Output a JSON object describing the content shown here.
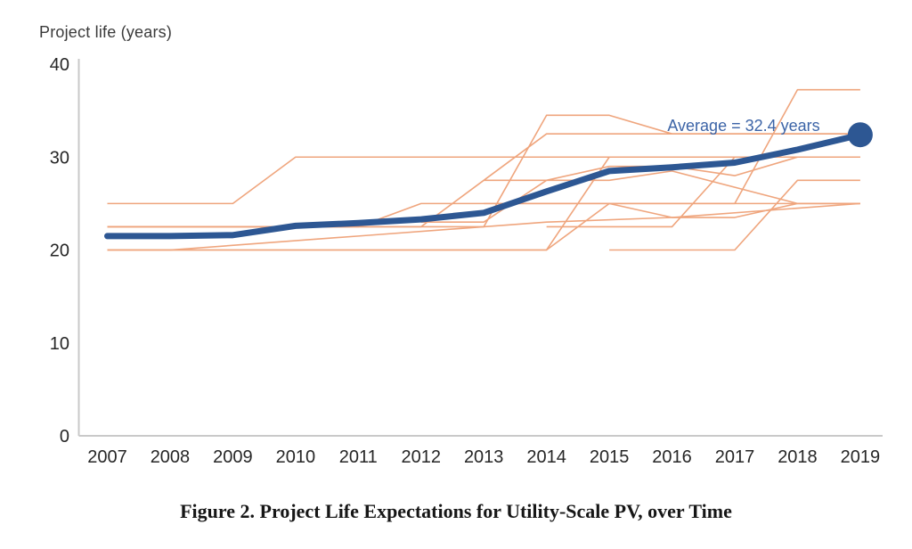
{
  "header": {
    "title": "Project life (years)"
  },
  "caption": "Figure 2. Project Life Expectations for Utility-Scale PV, over Time",
  "colors": {
    "average_line": "#2d5793",
    "respondent_line": "#efa57d",
    "axis": "#c9c9c9",
    "annotation_text": "#3c64a7",
    "tick_text": "#262626"
  },
  "chart_data": {
    "type": "line",
    "title": "Project life (years)",
    "xlabel": "",
    "ylabel": "Project life (years)",
    "x_tick_labels": [
      "2007",
      "2008",
      "2009",
      "2010",
      "2011",
      "2012",
      "2013",
      "2014",
      "2015",
      "2016",
      "2017",
      "2018",
      "2019"
    ],
    "y_ticks": [
      0,
      10,
      20,
      30,
      40
    ],
    "ylim": [
      0,
      40
    ],
    "xlim": [
      2007,
      2019
    ],
    "grid": false,
    "legend": "none",
    "annotation": {
      "text": "Average = 32.4 years",
      "x": 2019,
      "y": 32.4
    },
    "average_series": {
      "name": "Average",
      "x": [
        2007,
        2008,
        2009,
        2010,
        2011,
        2012,
        2013,
        2014,
        2015,
        2016,
        2017,
        2018,
        2019
      ],
      "values": [
        21.5,
        21.5,
        21.6,
        22.6,
        22.9,
        23.3,
        24.0,
        26.3,
        28.5,
        28.9,
        29.4,
        30.8,
        32.4
      ],
      "end_marker": {
        "x": 2019,
        "y": 32.4
      }
    },
    "respondent_series": [
      {
        "name": "respondent-1",
        "points": [
          [
            2007,
            25
          ],
          [
            2009,
            25
          ],
          [
            2010,
            30
          ],
          [
            2019,
            30
          ]
        ]
      },
      {
        "name": "respondent-2",
        "points": [
          [
            2007,
            22.5
          ],
          [
            2013,
            22.5
          ],
          [
            2014,
            34.5
          ],
          [
            2015,
            34.5
          ],
          [
            2016,
            32.5
          ],
          [
            2019,
            32.5
          ]
        ]
      },
      {
        "name": "respondent-3",
        "points": [
          [
            2007,
            20
          ],
          [
            2014,
            20
          ],
          [
            2015,
            30
          ],
          [
            2019,
            30
          ]
        ]
      },
      {
        "name": "respondent-4",
        "points": [
          [
            2007,
            20
          ],
          [
            2008,
            20
          ],
          [
            2011,
            21.5
          ],
          [
            2014,
            23
          ],
          [
            2016,
            23.5
          ],
          [
            2019,
            25
          ]
        ]
      },
      {
        "name": "respondent-5",
        "points": [
          [
            2007,
            22.5
          ],
          [
            2011,
            22.5
          ],
          [
            2012,
            25
          ],
          [
            2019,
            25
          ]
        ]
      },
      {
        "name": "respondent-6",
        "points": [
          [
            2007,
            20
          ],
          [
            2014,
            20
          ],
          [
            2015,
            25
          ],
          [
            2016,
            23.5
          ],
          [
            2017,
            23.5
          ],
          [
            2018,
            25
          ],
          [
            2019,
            25
          ]
        ]
      },
      {
        "name": "respondent-7",
        "points": [
          [
            2013,
            25
          ],
          [
            2017,
            25
          ],
          [
            2018,
            37.25
          ],
          [
            2019,
            37.25
          ]
        ]
      },
      {
        "name": "respondent-8",
        "points": [
          [
            2007,
            22.5
          ],
          [
            2012,
            22.5
          ],
          [
            2013,
            27.5
          ],
          [
            2014,
            32.5
          ],
          [
            2019,
            32.5
          ]
        ]
      },
      {
        "name": "respondent-9",
        "points": [
          [
            2014,
            22.5
          ],
          [
            2016,
            22.5
          ],
          [
            2017,
            30
          ],
          [
            2019,
            30
          ]
        ]
      },
      {
        "name": "respondent-10",
        "points": [
          [
            2015,
            20
          ],
          [
            2017,
            20
          ],
          [
            2018,
            27.5
          ],
          [
            2019,
            27.5
          ]
        ]
      },
      {
        "name": "respondent-11",
        "points": [
          [
            2013,
            27.5
          ],
          [
            2014,
            27.5
          ],
          [
            2015,
            29
          ],
          [
            2016,
            29
          ],
          [
            2017,
            28
          ],
          [
            2018,
            30
          ],
          [
            2019,
            30
          ]
        ]
      },
      {
        "name": "respondent-12",
        "points": [
          [
            2012,
            23
          ],
          [
            2013,
            23
          ],
          [
            2014,
            27.5
          ],
          [
            2015,
            27.5
          ],
          [
            2016,
            28.5
          ],
          [
            2018,
            25
          ],
          [
            2019,
            25
          ]
        ]
      }
    ]
  }
}
